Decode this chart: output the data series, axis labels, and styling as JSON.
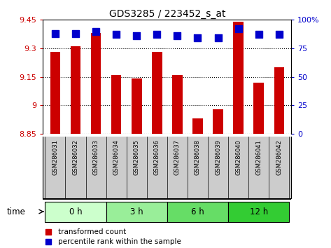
{
  "title": "GDS3285 / 223452_s_at",
  "samples": [
    "GSM286031",
    "GSM286032",
    "GSM286033",
    "GSM286034",
    "GSM286035",
    "GSM286036",
    "GSM286037",
    "GSM286038",
    "GSM286039",
    "GSM286040",
    "GSM286041",
    "GSM286042"
  ],
  "bar_values": [
    9.28,
    9.31,
    9.38,
    9.16,
    9.14,
    9.28,
    9.16,
    8.93,
    8.98,
    9.44,
    9.12,
    9.2
  ],
  "percentile_values": [
    88,
    88,
    90,
    87,
    86,
    87,
    86,
    84,
    84,
    92,
    87,
    87
  ],
  "bar_color": "#cc0000",
  "dot_color": "#0000cc",
  "ylim_left": [
    8.85,
    9.45
  ],
  "ylim_right": [
    0,
    100
  ],
  "yticks_left": [
    8.85,
    9.0,
    9.15,
    9.3,
    9.45
  ],
  "yticks_right": [
    0,
    25,
    50,
    75,
    100
  ],
  "ytick_labels_left": [
    "8.85",
    "9",
    "9.15",
    "9.3",
    "9.45"
  ],
  "ytick_labels_right": [
    "0",
    "25",
    "50",
    "75",
    "100%"
  ],
  "groups": [
    {
      "label": "0 h",
      "start": 0,
      "end": 3,
      "color": "#ccffcc"
    },
    {
      "label": "3 h",
      "start": 3,
      "end": 6,
      "color": "#99ee99"
    },
    {
      "label": "6 h",
      "start": 6,
      "end": 9,
      "color": "#66dd66"
    },
    {
      "label": "12 h",
      "start": 9,
      "end": 12,
      "color": "#33cc33"
    }
  ],
  "time_label": "time",
  "legend_bar_label": "transformed count",
  "legend_dot_label": "percentile rank within the sample",
  "bar_width": 0.5,
  "dot_size": 60,
  "background_color": "#ffffff",
  "plot_bg_color": "#ffffff",
  "label_bg_color": "#cccccc",
  "spine_color": "#000000"
}
